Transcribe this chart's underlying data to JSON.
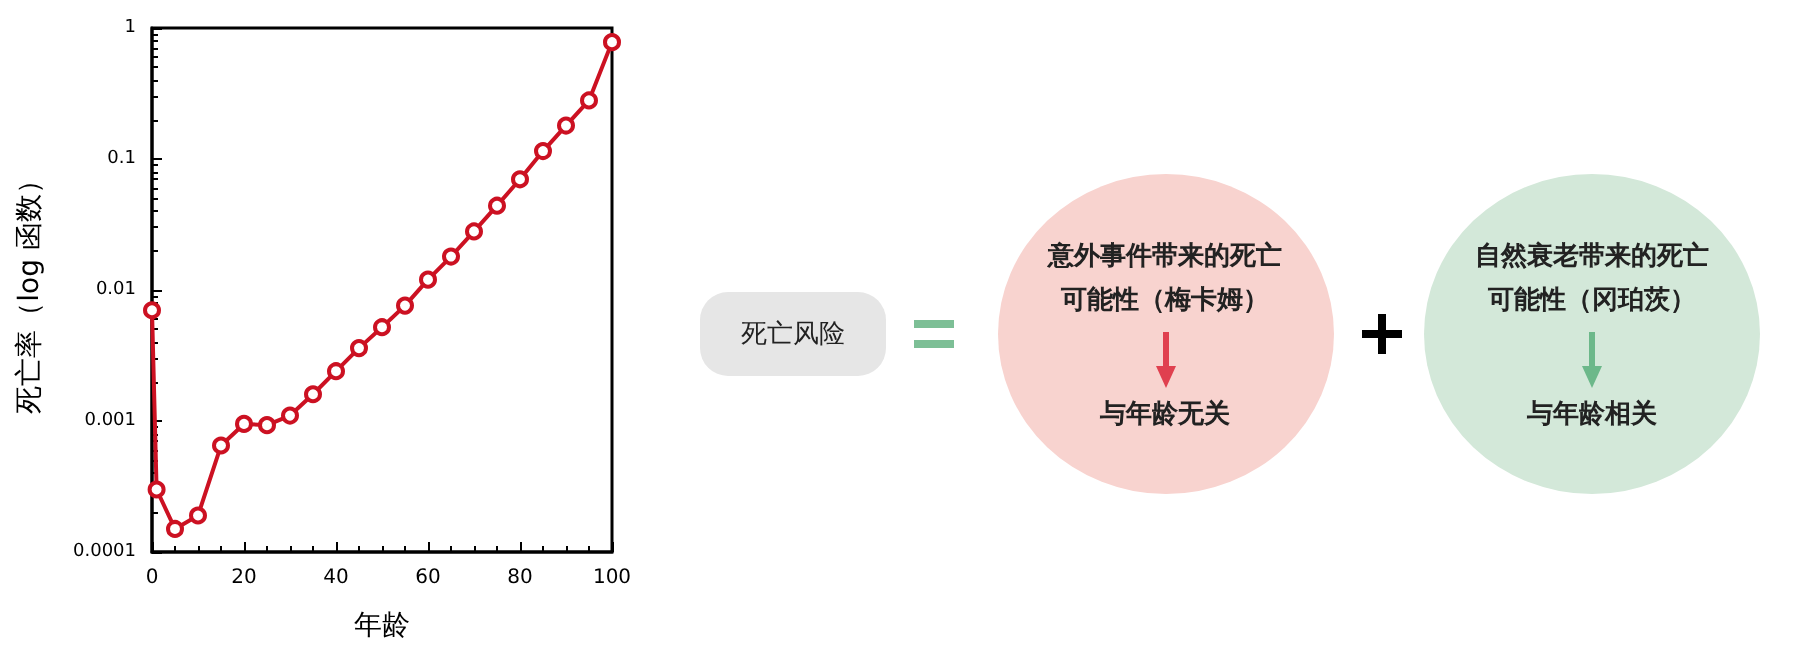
{
  "chart_data": [
    {
      "type": "line",
      "xlabel": "年龄",
      "ylabel": "死亡率（log 函数）",
      "x": [
        0,
        1,
        5,
        10,
        15,
        20,
        25,
        30,
        35,
        40,
        45,
        50,
        55,
        60,
        65,
        70,
        75,
        80,
        85,
        90,
        95,
        100
      ],
      "series": [
        {
          "color": "#cc1122",
          "values": [
            0.007,
            0.0003,
            0.00015,
            0.00019,
            0.00065,
            0.00095,
            0.00093,
            0.0011,
            0.0016,
            0.0024,
            0.0036,
            0.0052,
            0.0076,
            0.012,
            0.018,
            0.028,
            0.044,
            0.07,
            0.115,
            0.18,
            0.28,
            0.78
          ]
        }
      ],
      "log": "y",
      "xlim": [
        0,
        100
      ],
      "xticks": [
        0,
        20,
        40,
        60,
        80,
        100
      ],
      "ylim": [
        0.0001,
        1
      ],
      "yticks": [
        0.0001,
        0.001,
        0.01,
        0.1,
        1
      ],
      "grid": false,
      "marker": "circle",
      "line_style": "solid"
    },
    {
      "type": "other",
      "annotations": [
        "死亡风险",
        "意外事件带来的死亡可能性（梅卡姆）",
        "与年龄无关",
        "自然衰老带来的死亡可能性（冈珀茨）",
        "与年龄相关"
      ]
    }
  ]
}
